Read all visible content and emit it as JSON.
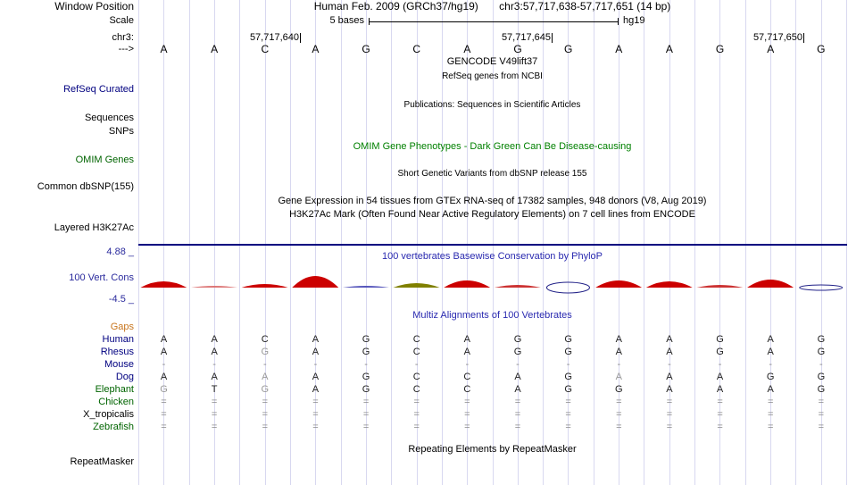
{
  "header": {
    "window_position_label": "Window Position",
    "assembly": "Human Feb. 2009 (GRCh37/hg19)",
    "range": "chr3:57,717,638-57,717,651 (14 bp)",
    "scale_label": "Scale",
    "scale_value": "5 bases",
    "assembly_short": "hg19",
    "chrom_label": "chr3:",
    "strand_label": "--->",
    "ruler_ticks": [
      "57,717,640",
      "57,717,645",
      "57,717,650"
    ]
  },
  "sequence": [
    "A",
    "A",
    "C",
    "A",
    "G",
    "C",
    "A",
    "G",
    "G",
    "A",
    "A",
    "G",
    "A",
    "G"
  ],
  "tracks": {
    "gencode_title": "GENCODE V49lift37",
    "refseq_title": "RefSeq genes from NCBI",
    "refseq_label": "RefSeq Curated",
    "publications_title": "Publications: Sequences in Scientific Articles",
    "sequences_label": "Sequences",
    "snps_label": "SNPs",
    "omim_title": "OMIM Gene Phenotypes - Dark Green Can Be Disease-causing",
    "omim_label": "OMIM Genes",
    "dbsnp_title": "Short Genetic Variants from dbSNP release 155",
    "dbsnp_label": "Common dbSNP(155)",
    "gtex_title": "Gene Expression in 54 tissues from GTEx RNA-seq of 17382 samples, 948 donors (V8, Aug 2019)",
    "h3k27ac_title": "H3K27Ac Mark (Often Found Near Active Regulatory Elements) on 7 cell lines from ENCODE",
    "h3k27ac_label": "Layered H3K27Ac",
    "repeat_title": "Repeating Elements by RepeatMasker",
    "repeat_label": "RepeatMasker"
  },
  "conservation": {
    "title": "100 vertebrates Basewise Conservation by PhyloP",
    "label": "100 Vert. Cons",
    "max": "4.88 _",
    "min": "-4.5 _",
    "peaks": [
      {
        "shape": "arc",
        "h": 7,
        "color": "#cc0000"
      },
      {
        "shape": "arc",
        "h": 2,
        "color": "#dd7777"
      },
      {
        "shape": "arc",
        "h": 4,
        "color": "#cc0000"
      },
      {
        "shape": "arc",
        "h": 13,
        "color": "#cc0000"
      },
      {
        "shape": "arc",
        "h": 2,
        "color": "#5555bb"
      },
      {
        "shape": "arc",
        "h": 5,
        "color": "#808000"
      },
      {
        "shape": "arc",
        "h": 8,
        "color": "#cc0000"
      },
      {
        "shape": "arc",
        "h": 3,
        "color": "#cc3333"
      },
      {
        "shape": "ellipse",
        "h": 6,
        "color": "#222288"
      },
      {
        "shape": "arc",
        "h": 8,
        "color": "#cc0000"
      },
      {
        "shape": "arc",
        "h": 7,
        "color": "#cc0000"
      },
      {
        "shape": "arc",
        "h": 3,
        "color": "#cc3333"
      },
      {
        "shape": "arc",
        "h": 9,
        "color": "#cc0000"
      },
      {
        "shape": "ellipse",
        "h": 3,
        "color": "#222288"
      }
    ]
  },
  "alignments": {
    "title": "Multiz Alignments of 100 Vertebrates",
    "gaps_label": "Gaps",
    "rows": [
      {
        "species": "Human",
        "label_color": "#000080",
        "bases": [
          "A",
          "A",
          "C",
          "A",
          "G",
          "C",
          "A",
          "G",
          "G",
          "A",
          "A",
          "G",
          "A",
          "G"
        ],
        "dim": []
      },
      {
        "species": "Rhesus",
        "label_color": "#000080",
        "bases": [
          "A",
          "A",
          "G",
          "A",
          "G",
          "C",
          "A",
          "G",
          "G",
          "A",
          "A",
          "G",
          "A",
          "G"
        ],
        "dim": [
          2
        ]
      },
      {
        "species": "Mouse",
        "label_color": "#000080",
        "bases": [
          "-",
          "-",
          "-",
          "-",
          "-",
          "-",
          "-",
          "-",
          "-",
          "-",
          "-",
          "-",
          "-",
          "-"
        ],
        "dim": []
      },
      {
        "species": "Dog",
        "label_color": "#000080",
        "bases": [
          "A",
          "A",
          "A",
          "A",
          "G",
          "C",
          "C",
          "A",
          "G",
          "A",
          "A",
          "A",
          "G",
          "G"
        ],
        "dim": [
          2,
          9
        ]
      },
      {
        "species": "Elephant",
        "label_color": "#006400",
        "bases": [
          "G",
          "T",
          "G",
          "A",
          "G",
          "C",
          "C",
          "A",
          "G",
          "G",
          "A",
          "A",
          "A",
          "G"
        ],
        "dim": [
          0,
          2
        ]
      },
      {
        "species": "Chicken",
        "label_color": "#006400",
        "bases": [
          "=",
          "=",
          "=",
          "=",
          "=",
          "=",
          "=",
          "=",
          "=",
          "=",
          "=",
          "=",
          "=",
          "="
        ],
        "dim": []
      },
      {
        "species": "X_tropicalis",
        "label_color": "#000000",
        "bases": [
          "=",
          "=",
          "=",
          "=",
          "=",
          "=",
          "=",
          "=",
          "=",
          "=",
          "=",
          "=",
          "=",
          "="
        ],
        "dim": []
      },
      {
        "species": "Zebrafish",
        "label_color": "#006400",
        "bases": [
          "=",
          "=",
          "=",
          "=",
          "=",
          "=",
          "=",
          "=",
          "=",
          "=",
          "=",
          "=",
          "=",
          "="
        ],
        "dim": []
      }
    ]
  }
}
